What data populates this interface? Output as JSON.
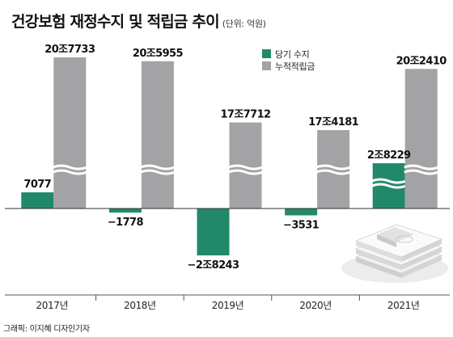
{
  "header": {
    "title": "건강보험 재정수지 및 적립금 추이",
    "unit": "(단위: 억원)"
  },
  "legend": {
    "items": [
      {
        "label": "당기 수지",
        "color": "#21896a"
      },
      {
        "label": "누적적립금",
        "color": "#a3a3a5"
      }
    ]
  },
  "credit": "그래픽: 이지혜 디자인기자",
  "colors": {
    "balance": "#21896a",
    "reserve": "#a3a3a5",
    "axis": "#555555"
  },
  "chart_data": {
    "type": "bar",
    "axis_break": true,
    "categories": [
      "2017년",
      "2018년",
      "2019년",
      "2020년",
      "2021년"
    ],
    "series": [
      {
        "name": "당기 수지",
        "values": [
          7077,
          -1778,
          -28243,
          -3531,
          28229
        ],
        "labels": [
          "7077",
          "−1778",
          "−2조8243",
          "−3531",
          "2조8229"
        ]
      },
      {
        "name": "누적적립금",
        "values": [
          207733,
          205955,
          177712,
          174181,
          202410
        ],
        "labels": [
          "20조7733",
          "20조5955",
          "17조7712",
          "17조4181",
          "20조2410"
        ]
      }
    ]
  }
}
